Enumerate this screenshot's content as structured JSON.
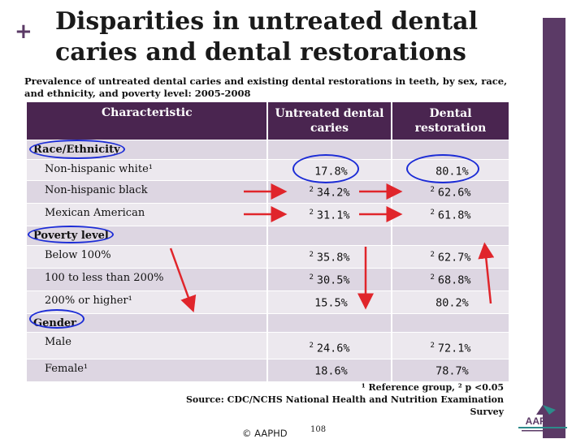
{
  "title_line1": "Disparities in untreated dental",
  "title_line2": "caries and dental restorations",
  "subtitle": "Prevalence of untreated dental caries and existing dental restorations in teeth, by sex, race, and ethnicity, and poverty level: 2005-2008",
  "table": {
    "headers": {
      "characteristic": "Characteristic",
      "untreated_line1": "Untreated dental",
      "untreated_line2": "caries",
      "restoration_line1": "Dental",
      "restoration_line2": "restoration"
    },
    "sections": [
      {
        "label": "Race/Ethnicity",
        "rows": [
          {
            "label": "Non-hispanic white¹",
            "untreated_mark": "",
            "untreated": "17.8%",
            "restoration_mark": "",
            "restoration": "80.1%"
          },
          {
            "label": "Non-hispanic black",
            "untreated_mark": "2",
            "untreated": "34.2%",
            "restoration_mark": "2",
            "restoration": "62.6%"
          },
          {
            "label": "Mexican American",
            "untreated_mark": "2",
            "untreated": "31.1%",
            "restoration_mark": "2",
            "restoration": "61.8%"
          }
        ]
      },
      {
        "label": "Poverty level",
        "rows": [
          {
            "label": "Below 100%",
            "untreated_mark": "2",
            "untreated": "35.8%",
            "restoration_mark": "2",
            "restoration": "62.7%"
          },
          {
            "label": "100 to less than 200%",
            "untreated_mark": "2",
            "untreated": "30.5%",
            "restoration_mark": "2",
            "restoration": "68.8%"
          },
          {
            "label": "200% or higher¹",
            "untreated_mark": "",
            "untreated": "15.5%",
            "restoration_mark": "",
            "restoration": "80.2%"
          }
        ]
      },
      {
        "label": "Gender",
        "rows": [
          {
            "label": "Male",
            "untreated_mark": "2",
            "untreated": "24.6%",
            "restoration_mark": "2",
            "restoration": "72.1%"
          },
          {
            "label": "Female¹",
            "untreated_mark": "",
            "untreated": "18.6%",
            "restoration_mark": "",
            "restoration": "78.7%"
          }
        ]
      }
    ]
  },
  "footnote_line1": "¹ Reference group,  ² p <0.05",
  "footnote_line2": "Source: CDC/NCHS National Health and Nutrition Examination Survey",
  "copyright": "© AAPHD",
  "page_number": "108",
  "logo_text": "AAPHD",
  "colors": {
    "accent": "#5b3a66",
    "header_bg": "#4a2550",
    "band": "#ddd6e2",
    "circle": "#1c2cd6",
    "arrow": "#e0252b"
  }
}
